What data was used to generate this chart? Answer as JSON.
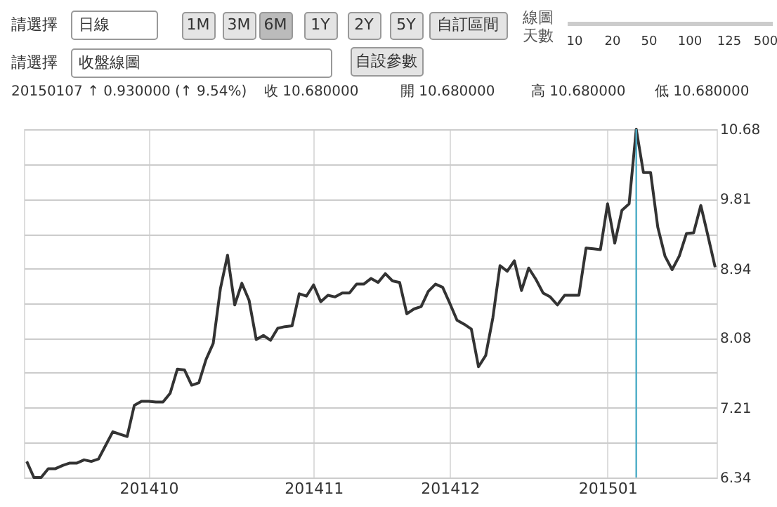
{
  "chart_data": {
    "type": "line",
    "categories": [
      null,
      null,
      null,
      null,
      null,
      null,
      null,
      null,
      null,
      null,
      null,
      null,
      null,
      null,
      null,
      null,
      null,
      "201410",
      null,
      null,
      null,
      null,
      null,
      null,
      null,
      null,
      null,
      null,
      null,
      null,
      null,
      null,
      null,
      null,
      null,
      null,
      null,
      null,
      null,
      null,
      "201411",
      null,
      null,
      null,
      null,
      null,
      null,
      null,
      null,
      null,
      null,
      null,
      null,
      null,
      null,
      null,
      null,
      null,
      null,
      "201412",
      null,
      null,
      null,
      null,
      null,
      null,
      null,
      null,
      null,
      null,
      null,
      null,
      null,
      null,
      null,
      null,
      null,
      null,
      null,
      null,
      null,
      "201501",
      null,
      null,
      null,
      null,
      null,
      null,
      null,
      null,
      null,
      null,
      null,
      null,
      null,
      null,
      null
    ],
    "series": [
      {
        "color": "#333333",
        "values": [
          6.54,
          6.34,
          6.34,
          6.45,
          6.45,
          6.49,
          6.52,
          6.52,
          6.56,
          6.54,
          6.57,
          6.74,
          6.91,
          6.88,
          6.85,
          7.24,
          7.29,
          7.29,
          7.28,
          7.28,
          7.39,
          7.69,
          7.68,
          7.49,
          7.52,
          7.81,
          8.01,
          8.69,
          9.11,
          8.49,
          8.76,
          8.55,
          8.06,
          8.11,
          8.05,
          8.2,
          8.22,
          8.23,
          8.63,
          8.6,
          8.74,
          8.53,
          8.61,
          8.59,
          8.64,
          8.64,
          8.75,
          8.75,
          8.82,
          8.77,
          8.88,
          8.79,
          8.77,
          8.38,
          8.44,
          8.47,
          8.66,
          8.75,
          8.71,
          8.51,
          8.3,
          8.25,
          8.19,
          7.72,
          7.86,
          8.33,
          8.98,
          8.91,
          9.04,
          8.67,
          8.95,
          8.81,
          8.64,
          8.59,
          8.49,
          8.61,
          8.61,
          8.61,
          9.2,
          9.19,
          9.18,
          9.75,
          9.26,
          9.67,
          9.75,
          10.68,
          10.14,
          10.14,
          9.46,
          9.1,
          8.93,
          9.1,
          9.38,
          9.39,
          9.73,
          9.35,
          8.96
        ]
      }
    ],
    "ylim": [
      6.34,
      10.68
    ],
    "yticks": [
      6.34,
      {
        "value": 6.775,
        "label": null
      },
      7.21,
      {
        "value": 7.645,
        "label": null
      },
      8.08,
      {
        "value": 8.51,
        "label": null
      },
      8.94,
      {
        "value": 9.375,
        "label": null
      },
      9.81,
      {
        "value": 10.245,
        "label": null
      },
      10.68
    ],
    "grid": true,
    "legend": false,
    "marker": "none",
    "line_style": "solid",
    "annotations": [
      "請選擇",
      "日線",
      "1M",
      "3M",
      "6M",
      "1Y",
      "2Y",
      "5Y",
      "自訂區間",
      "線圖天數",
      "10",
      "20",
      "50",
      "100",
      "125",
      "500",
      "請選擇",
      "收盤線圖",
      "自設參數",
      "20150107 ↑ 0.930000 (↑ 9.54%)",
      "收 10.680000",
      "開 10.680000",
      "高 10.680000",
      "低 10.680000"
    ]
  }
}
